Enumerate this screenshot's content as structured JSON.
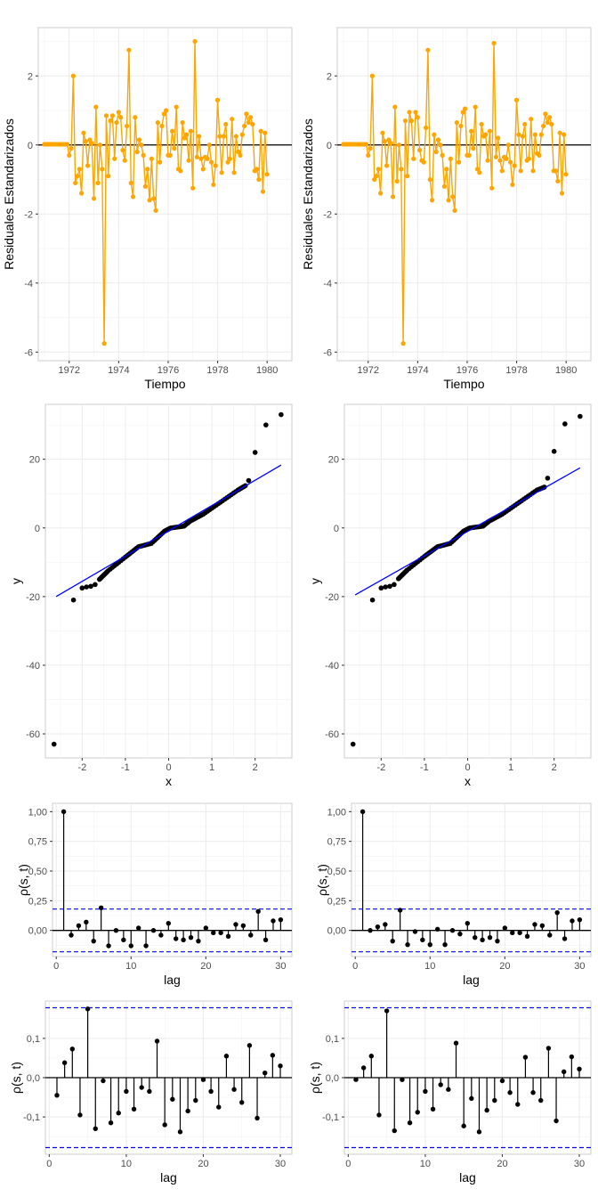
{
  "chart_data": [
    {
      "type": "line",
      "xlabel": "Tiempo",
      "ylabel": "Residuales Estandarizados",
      "xticks": [
        "1972",
        "1974",
        "1976",
        "1978",
        "1980"
      ],
      "yticks": [
        "2",
        "0",
        "-2",
        "-4",
        "-6"
      ],
      "xlim": [
        1970.75,
        1981.0
      ],
      "ylim": [
        -6.25,
        3.4
      ],
      "xtick_values": [
        1972,
        1974,
        1976,
        1978,
        1980
      ],
      "ytick_values": [
        2,
        0,
        -2,
        -4,
        -6
      ],
      "hline": 0,
      "color": "#FFA500",
      "x_start": 1971.0,
      "x_step": 0.0833,
      "values": [
        0.02,
        0.02,
        0.02,
        0.02,
        0.02,
        0.02,
        0.02,
        0.02,
        0.02,
        0.02,
        0.02,
        0.02,
        -0.3,
        -0.1,
        2.0,
        -1.1,
        -0.9,
        -0.7,
        -1.4,
        0.35,
        0.1,
        -0.6,
        0.15,
        0.05,
        -1.55,
        1.1,
        -1.1,
        0.0,
        -0.7,
        -5.75,
        0.85,
        -0.9,
        0.7,
        0.85,
        -0.4,
        0.65,
        0.95,
        0.8,
        -0.15,
        -0.45,
        0.55,
        2.75,
        -1.1,
        -1.5,
        0.8,
        -0.2,
        0.15,
        0.0,
        -0.3,
        -1.2,
        -0.7,
        -1.6,
        -0.4,
        -1.55,
        -1.9,
        0.65,
        -0.5,
        0.55,
        0.9,
        1.0,
        -0.3,
        -0.3,
        0.4,
        -0.1,
        1.1,
        -0.7,
        -0.75,
        0.65,
        0.2,
        0.3,
        -0.45,
        0.4,
        -1.25,
        3.0,
        -0.35,
        0.25,
        -0.4,
        -0.7,
        -0.35,
        -0.4,
        0.0,
        -0.5,
        -1.15,
        -0.6,
        1.3,
        0.25,
        -0.8,
        0.25,
        0.6,
        -0.5,
        -0.4,
        0.75,
        -0.8,
        0.25,
        -0.2,
        -0.3,
        0.3,
        0.55,
        0.9,
        0.65,
        0.8,
        0.6,
        -0.75,
        -0.7,
        -1.0,
        0.4,
        -1.35,
        0.35,
        -0.85
      ]
    },
    {
      "type": "line",
      "xlabel": "Tiempo",
      "ylabel": "Residuales Estandarizados",
      "xticks": [
        "1972",
        "1974",
        "1976",
        "1978",
        "1980"
      ],
      "yticks": [
        "2",
        "0",
        "-2",
        "-4",
        "-6"
      ],
      "xlim": [
        1970.75,
        1981.0
      ],
      "ylim": [
        -6.25,
        3.4
      ],
      "xtick_values": [
        1972,
        1974,
        1976,
        1978,
        1980
      ],
      "ytick_values": [
        2,
        0,
        -2,
        -4,
        -6
      ],
      "hline": 0,
      "color": "#FFA500",
      "x_start": 1971.0,
      "x_step": 0.0833,
      "values": [
        0.02,
        0.02,
        0.02,
        0.02,
        0.02,
        0.02,
        0.02,
        0.02,
        0.02,
        0.02,
        0.02,
        0.02,
        -0.3,
        -0.1,
        2.0,
        -1.0,
        -0.9,
        -0.7,
        -1.4,
        0.35,
        0.1,
        -0.6,
        0.15,
        0.05,
        -1.5,
        1.1,
        -1.05,
        0.0,
        -0.7,
        -5.75,
        0.7,
        -0.9,
        0.95,
        0.7,
        -0.4,
        0.95,
        0.8,
        -0.15,
        -0.45,
        -0.5,
        0.5,
        2.75,
        -1.0,
        -1.6,
        0.3,
        -0.2,
        0.15,
        0.0,
        -0.3,
        -1.2,
        -0.7,
        -1.6,
        -0.4,
        -1.5,
        -1.9,
        0.65,
        -0.5,
        0.55,
        0.95,
        1.05,
        -0.3,
        -0.3,
        0.4,
        -0.1,
        1.1,
        -0.7,
        -0.8,
        0.6,
        0.25,
        0.3,
        -0.45,
        0.4,
        -1.25,
        2.95,
        -0.35,
        0.2,
        -0.45,
        -0.75,
        -0.35,
        -0.4,
        0.0,
        -0.5,
        -1.15,
        -0.6,
        1.3,
        0.3,
        -0.75,
        0.25,
        0.6,
        -0.45,
        -0.4,
        0.75,
        -0.75,
        0.3,
        -0.25,
        -0.3,
        0.3,
        0.55,
        0.9,
        0.65,
        0.8,
        0.6,
        -0.75,
        -0.75,
        -1.05,
        0.35,
        -1.4,
        0.3,
        -0.85
      ]
    },
    {
      "type": "scatter",
      "xlabel": "x",
      "ylabel": "y",
      "xticks": [
        "-2",
        "-1",
        "0",
        "1",
        "2"
      ],
      "yticks": [
        "20",
        "0",
        "-20",
        "-40",
        "-60"
      ],
      "xlim": [
        -2.85,
        2.85
      ],
      "ylim": [
        -67,
        36
      ],
      "xtick_values": [
        -2,
        -1,
        0,
        1,
        2
      ],
      "ytick_values": [
        20,
        0,
        -20,
        -40,
        -60
      ],
      "reference_line": {
        "x": [
          -2.6,
          2.6
        ],
        "y": [
          -20,
          18.3
        ],
        "color": "#0000FF"
      },
      "outliers": [
        [
          -2.65,
          -63
        ],
        [
          -2.2,
          -21
        ],
        [
          -2.0,
          -17.5
        ],
        [
          -1.9,
          -17.2
        ],
        [
          -1.8,
          -17
        ],
        [
          -1.7,
          -16.5
        ],
        [
          1.85,
          13.8
        ],
        [
          2.0,
          22
        ],
        [
          2.25,
          30
        ],
        [
          2.6,
          33
        ]
      ],
      "qq_segments": [
        [
          -1.6,
          -15
        ],
        [
          -1.4,
          -12.5
        ],
        [
          -1.0,
          -8.5
        ],
        [
          -0.7,
          -5.5
        ],
        [
          -0.4,
          -4.5
        ],
        [
          -0.1,
          -1
        ],
        [
          0.05,
          0
        ],
        [
          0.35,
          0.5
        ],
        [
          0.5,
          2
        ],
        [
          0.8,
          4
        ],
        [
          1.2,
          7.5
        ],
        [
          1.6,
          11
        ],
        [
          1.8,
          12.5
        ]
      ]
    },
    {
      "type": "scatter",
      "xlabel": "x",
      "ylabel": "y",
      "xticks": [
        "-2",
        "-1",
        "0",
        "1",
        "2"
      ],
      "yticks": [
        "20",
        "0",
        "-20",
        "-40",
        "-60"
      ],
      "xlim": [
        -2.85,
        2.85
      ],
      "ylim": [
        -67,
        36
      ],
      "xtick_values": [
        -2,
        -1,
        0,
        1,
        2
      ],
      "ytick_values": [
        20,
        0,
        -20,
        -40,
        -60
      ],
      "reference_line": {
        "x": [
          -2.6,
          2.6
        ],
        "y": [
          -19.5,
          17.5
        ],
        "color": "#0000FF"
      },
      "outliers": [
        [
          -2.65,
          -63
        ],
        [
          -2.2,
          -21
        ],
        [
          -2.0,
          -17.5
        ],
        [
          -1.9,
          -17.2
        ],
        [
          -1.8,
          -17
        ],
        [
          -1.7,
          -16.5
        ],
        [
          1.85,
          14.5
        ],
        [
          2.0,
          22.3
        ],
        [
          2.25,
          30.3
        ],
        [
          2.6,
          32.5
        ]
      ],
      "qq_segments": [
        [
          -1.6,
          -14.8
        ],
        [
          -1.4,
          -12.3
        ],
        [
          -1.0,
          -8.3
        ],
        [
          -0.7,
          -5.5
        ],
        [
          -0.4,
          -4.5
        ],
        [
          -0.1,
          -1
        ],
        [
          0.05,
          0
        ],
        [
          0.35,
          0.5
        ],
        [
          0.5,
          2
        ],
        [
          0.8,
          4
        ],
        [
          1.2,
          7.5
        ],
        [
          1.6,
          11
        ],
        [
          1.8,
          12
        ]
      ]
    },
    {
      "type": "bar",
      "xlabel": "lag",
      "ylabel": "ρ(s, t)",
      "xticks": [
        "0",
        "10",
        "20",
        "30"
      ],
      "yticks": [
        "1,00",
        "0,75",
        "0,50",
        "0,25",
        "0,00"
      ],
      "xlim": [
        -0.5,
        31.5
      ],
      "ylim": [
        -0.22,
        1.07
      ],
      "xtick_values": [
        0,
        10,
        20,
        30
      ],
      "ytick_values": [
        1.0,
        0.75,
        0.5,
        0.25,
        0.0
      ],
      "conf_bounds": [
        0.18,
        -0.18
      ],
      "lags": [
        1,
        2,
        3,
        4,
        5,
        6,
        7,
        8,
        9,
        10,
        11,
        12,
        13,
        14,
        15,
        16,
        17,
        18,
        19,
        20,
        21,
        22,
        23,
        24,
        25,
        26,
        27,
        28,
        29,
        30
      ],
      "values": [
        1.0,
        -0.04,
        0.04,
        0.07,
        -0.09,
        0.19,
        -0.13,
        0.0,
        -0.08,
        -0.13,
        0.02,
        -0.13,
        0.0,
        -0.04,
        0.06,
        -0.07,
        -0.08,
        -0.06,
        -0.09,
        0.02,
        -0.02,
        -0.02,
        -0.05,
        0.05,
        0.04,
        -0.04,
        0.16,
        -0.08,
        0.08,
        0.09
      ]
    },
    {
      "type": "bar",
      "xlabel": "lag",
      "ylabel": "ρ(s, t)",
      "xticks": [
        "0",
        "10",
        "20",
        "30"
      ],
      "yticks": [
        "1,00",
        "0,75",
        "0,50",
        "0,25",
        "0,00"
      ],
      "xlim": [
        -0.5,
        31.5
      ],
      "ylim": [
        -0.22,
        1.07
      ],
      "xtick_values": [
        0,
        10,
        20,
        30
      ],
      "ytick_values": [
        1.0,
        0.75,
        0.5,
        0.25,
        0.0
      ],
      "conf_bounds": [
        0.18,
        -0.18
      ],
      "lags": [
        1,
        2,
        3,
        4,
        5,
        6,
        7,
        8,
        9,
        10,
        11,
        12,
        13,
        14,
        15,
        16,
        17,
        18,
        19,
        20,
        21,
        22,
        23,
        24,
        25,
        26,
        27,
        28,
        29,
        30
      ],
      "values": [
        1.0,
        0.0,
        0.03,
        0.05,
        -0.09,
        0.17,
        -0.12,
        -0.01,
        -0.08,
        -0.12,
        0.01,
        -0.12,
        0.0,
        -0.03,
        0.06,
        -0.06,
        -0.08,
        -0.06,
        -0.09,
        0.02,
        -0.02,
        -0.02,
        -0.05,
        0.05,
        0.04,
        -0.04,
        0.15,
        -0.07,
        0.08,
        0.09
      ]
    },
    {
      "type": "bar",
      "xlabel": "lag",
      "ylabel": "ρ(s, t)",
      "xticks": [
        "0",
        "10",
        "20",
        "30"
      ],
      "yticks": [
        "0,1",
        "0,0",
        "-0,1"
      ],
      "xlim": [
        -0.5,
        31.5
      ],
      "ylim": [
        -0.195,
        0.195
      ],
      "xtick_values": [
        0,
        10,
        20,
        30
      ],
      "ytick_values": [
        0.1,
        0.0,
        -0.1
      ],
      "conf_bounds": [
        0.178,
        -0.178
      ],
      "lags": [
        1,
        2,
        3,
        4,
        5,
        6,
        7,
        8,
        9,
        10,
        11,
        12,
        13,
        14,
        15,
        16,
        17,
        18,
        19,
        20,
        21,
        22,
        23,
        24,
        25,
        26,
        27,
        28,
        29,
        30
      ],
      "values": [
        -0.045,
        0.038,
        0.073,
        -0.095,
        0.175,
        -0.13,
        -0.008,
        -0.115,
        -0.09,
        -0.035,
        -0.08,
        -0.025,
        -0.035,
        0.093,
        -0.12,
        -0.055,
        -0.138,
        -0.085,
        -0.058,
        -0.005,
        -0.035,
        -0.075,
        0.055,
        -0.03,
        -0.063,
        0.082,
        -0.103,
        0.012,
        0.057,
        0.03
      ]
    },
    {
      "type": "bar",
      "xlabel": "lag",
      "ylabel": "ρ(s, t)",
      "xticks": [
        "0",
        "10",
        "20",
        "30"
      ],
      "yticks": [
        "0,1",
        "0,0",
        "-0,1"
      ],
      "xlim": [
        -0.5,
        31.5
      ],
      "ylim": [
        -0.195,
        0.195
      ],
      "xtick_values": [
        0,
        10,
        20,
        30
      ],
      "ytick_values": [
        0.1,
        0.0,
        -0.1
      ],
      "conf_bounds": [
        0.178,
        -0.178
      ],
      "lags": [
        1,
        2,
        3,
        4,
        5,
        6,
        7,
        8,
        9,
        10,
        11,
        12,
        13,
        14,
        15,
        16,
        17,
        18,
        19,
        20,
        21,
        22,
        23,
        24,
        25,
        26,
        27,
        28,
        29,
        30
      ],
      "values": [
        -0.005,
        0.025,
        0.055,
        -0.095,
        0.17,
        -0.135,
        -0.005,
        -0.115,
        -0.088,
        -0.035,
        -0.08,
        -0.018,
        -0.03,
        0.088,
        -0.123,
        -0.053,
        -0.138,
        -0.083,
        -0.058,
        -0.008,
        -0.038,
        -0.068,
        0.052,
        -0.038,
        -0.058,
        0.075,
        -0.11,
        0.015,
        0.053,
        0.022
      ]
    }
  ]
}
